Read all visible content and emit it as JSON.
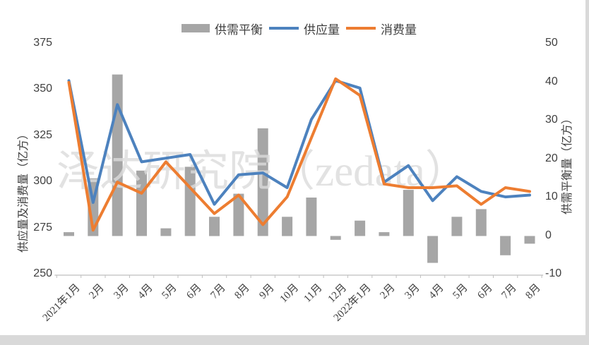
{
  "watermark": "泽达研究院（zedata）",
  "legend": {
    "balance_label": "供需平衡",
    "supply_label": "供应量",
    "consumption_label": "消费量"
  },
  "axes": {
    "left_title": "供应量及消费量（亿方）",
    "right_title": "供需平衡量（亿方）",
    "left_ticks": [
      375,
      350,
      325,
      300,
      275,
      250
    ],
    "right_ticks": [
      50,
      40,
      30,
      20,
      10,
      0,
      -10
    ]
  },
  "colors": {
    "supply": "#4D82BE",
    "consumption": "#ED7D31",
    "balance": "#A6A6A6",
    "axis_line": "#BFBFBF",
    "watermark": "#DCDCDC",
    "text": "#3F3F3F"
  },
  "chart_data": {
    "type": "combo",
    "categories": [
      "2021年1月",
      "2月",
      "3月",
      "4月",
      "5月",
      "6月",
      "7月",
      "8月",
      "9月",
      "10月",
      "11月",
      "12月",
      "2022年1月",
      "2月",
      "3月",
      "4月",
      "5月",
      "6月",
      "7月",
      "8月"
    ],
    "series": [
      {
        "name": "供需平衡",
        "type": "bar",
        "axis": "right",
        "values": [
          1,
          15,
          42,
          17,
          2,
          18,
          5,
          11,
          28,
          5,
          10,
          -1,
          4,
          1,
          12,
          -7,
          5,
          7,
          -5,
          -2
        ]
      },
      {
        "name": "供应量",
        "type": "line",
        "axis": "left",
        "values": [
          355,
          289,
          342,
          311,
          313,
          315,
          288,
          304,
          305,
          297,
          334,
          355,
          351,
          300,
          309,
          290,
          303,
          295,
          292,
          293
        ]
      },
      {
        "name": "消费量",
        "type": "line",
        "axis": "left",
        "values": [
          354,
          274,
          300,
          294,
          311,
          297,
          283,
          293,
          277,
          292,
          324,
          356,
          347,
          299,
          297,
          297,
          298,
          288,
          297,
          295
        ]
      }
    ],
    "left_ylim": [
      250,
      375
    ],
    "right_ylim": [
      -10,
      50
    ],
    "grid": false,
    "legend_position": "top"
  }
}
